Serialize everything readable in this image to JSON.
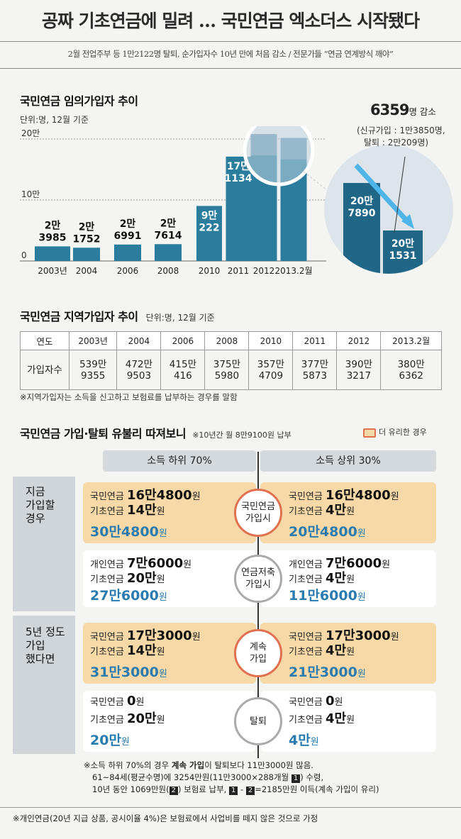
{
  "header": {
    "title": "공짜 기초연금에 밀려 … 국민연금 엑소더스 시작됐다",
    "subtitle": "2월 전업주부 등 1만2122명 탈퇴, 순가입자수 10년 만에 처음 감소 / 전문가들 “연금 연계방식 깨야”"
  },
  "chart1": {
    "title": "국민연금 임의가입자 추이",
    "unit": "단위:명, 12월 기준",
    "yticks": [
      "20만",
      "10만",
      "0"
    ],
    "callout_value": "6359",
    "callout_suffix": "명 감소",
    "callout_line1": "(신규가입 : 1만3850명,",
    "callout_line2": "탈퇴 : 2만209명)",
    "zoom_left_l1": "20만",
    "zoom_left_l2": "7890",
    "zoom_right_l1": "20만",
    "zoom_right_l2": "1531"
  },
  "chart_data": {
    "type": "bar",
    "title": "국민연금 임의가입자 추이",
    "unit": "단위:명, 12월 기준",
    "categories": [
      "2003년",
      "2004",
      "2006",
      "2008",
      "2010",
      "2011",
      "2012",
      "2013.2월"
    ],
    "values": [
      23985,
      21752,
      26991,
      27614,
      90222,
      171134,
      207890,
      201531
    ],
    "labels": [
      [
        "2만",
        "3985"
      ],
      [
        "2만",
        "1752"
      ],
      [
        "2만",
        "6991"
      ],
      [
        "2만",
        "7614"
      ],
      [
        "9만",
        "222"
      ],
      [
        "17만",
        "1134"
      ],
      [
        "",
        ""
      ],
      [
        "",
        ""
      ]
    ],
    "ylim": [
      0,
      200000
    ],
    "ytick_labels": [
      "0",
      "10만",
      "20만"
    ],
    "colors": {
      "dark": "#1e6384",
      "mid": "#2a7d9c",
      "light": "#6a9ab5"
    }
  },
  "chart2": {
    "title": "국민연금 지역가입자 추이",
    "unit": "단위:명, 12월 기준",
    "row_header_year": "연도",
    "row_header_count": "가입자수",
    "years": [
      "2003년",
      "2004",
      "2006",
      "2008",
      "2010",
      "2011",
      "2012",
      "2013.2월"
    ],
    "counts_top": [
      "539만",
      "472만",
      "415만",
      "375만",
      "357만",
      "377만",
      "390만",
      "380만"
    ],
    "counts_bottom": [
      "9355",
      "9503",
      "416",
      "5980",
      "4709",
      "5873",
      "3217",
      "6362"
    ],
    "note": "※지역가입자는 소득을 신고하고 보험료를 납부하는 경우를 말함"
  },
  "compare": {
    "title": "국민연금 가입·탈퇴 유불리 따져보니",
    "subnote": "※10년간 월 8만9100원 납부",
    "legend": "더 유리한 경우",
    "col_left": "소득 하위 70%",
    "col_right": "소득 상위 30%",
    "case1_label": [
      "지금",
      "가입할",
      "경우"
    ],
    "case2_label": [
      "5년 정도",
      "가입",
      "했다면"
    ],
    "cards": [
      {
        "circle": [
          "국민연금",
          "가입시"
        ],
        "left": {
          "r1l": "국민연금 ",
          "r1v": "16만4800",
          "r1u": "원",
          "r2l": "기초연금 ",
          "r2v": "14만",
          "r2u": "원",
          "total": "30만4800",
          "tu": "원"
        },
        "right": {
          "r1l": "국민연금 ",
          "r1v": "16만4800",
          "r1u": "원",
          "r2l": "기초연금 ",
          "r2v": "4만",
          "r2u": "원",
          "total": "20만4800",
          "tu": "원"
        }
      },
      {
        "circle": [
          "연금저축",
          "가입시"
        ],
        "left": {
          "r1l": "개인연금 ",
          "r1v": "7만6000",
          "r1u": "원",
          "r2l": "기초연금 ",
          "r2v": "20만",
          "r2u": "원",
          "total": "27만6000",
          "tu": "원"
        },
        "right": {
          "r1l": "개인연금 ",
          "r1v": "7만6000",
          "r1u": "원",
          "r2l": "기초연금 ",
          "r2v": "4만",
          "r2u": "원",
          "total": "11만6000",
          "tu": "원"
        }
      },
      {
        "circle": [
          "계속",
          "가입"
        ],
        "left": {
          "r1l": "국민연금 ",
          "r1v": "17만3000",
          "r1u": "원",
          "r2l": "기초연금 ",
          "r2v": "14만",
          "r2u": "원",
          "total": "31만3000",
          "tu": "원"
        },
        "right": {
          "r1l": "국민연금 ",
          "r1v": "17만3000",
          "r1u": "원",
          "r2l": "기초연금 ",
          "r2v": "4만",
          "r2u": "원",
          "total": "21만3000",
          "tu": "원"
        }
      },
      {
        "circle": [
          "탈퇴",
          ""
        ],
        "left": {
          "r1l": "국민연금 ",
          "r1v": "0",
          "r1u": "원",
          "r2l": "기초연금 ",
          "r2v": "20만",
          "r2u": "원",
          "total": "20만",
          "tu": "원"
        },
        "right": {
          "r1l": "국민연금 ",
          "r1v": "0",
          "r1u": "원",
          "r2l": "기초연금 ",
          "r2v": "4만",
          "r2u": "원",
          "total": "4만",
          "tu": "원"
        }
      }
    ],
    "note1_a": "※소득 하위 70%의 경우 ",
    "note1_b": "계속 가입",
    "note1_c": "이 탈퇴보다 11만3000원 많음.",
    "note2_a": "61~84세(평균수명)에 3254만원(11만3000×288개월 ",
    "box1": "1",
    "note2_b": ") 수령,",
    "note3_a": "10년 동안 1069만원(",
    "box2": "2",
    "note3_b": ") 보험료 납부, ",
    "note3_dash": " - ",
    "note3_c": "=2185만원 이득(계속 가입이 유리)",
    "footnote": "※개인연금(20년 지급 상품, 공시이율 4%)은 보험료에서 사업비를 떼지 않은 것으로 가정"
  }
}
